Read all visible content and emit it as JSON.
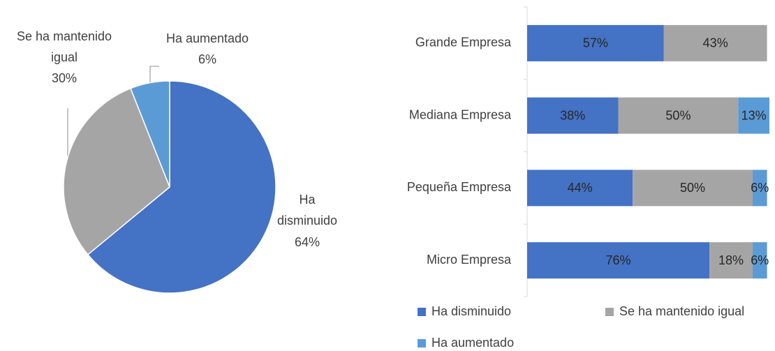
{
  "chart_data": [
    {
      "type": "pie",
      "categories": [
        "Ha disminuido",
        "Se ha mantenido igual",
        "Ha aumentado"
      ],
      "values": [
        64,
        30,
        6
      ],
      "value_labels": [
        "64%",
        "30%",
        "6%"
      ],
      "colors": [
        "#4472c4",
        "#a5a5a5",
        "#5b9bd5"
      ]
    },
    {
      "type": "bar",
      "orientation": "horizontal",
      "stacked": true,
      "categories": [
        "Grande Empresa",
        "Mediana Empresa",
        "Pequeña Empresa",
        "Micro Empresa"
      ],
      "series": [
        {
          "name": "Ha disminuido",
          "color": "#4472c4",
          "values": [
            57,
            38,
            44,
            76
          ],
          "value_labels": [
            "57%",
            "38%",
            "44%",
            "76%"
          ]
        },
        {
          "name": "Se ha mantenido igual",
          "color": "#a5a5a5",
          "values": [
            43,
            50,
            50,
            18
          ],
          "value_labels": [
            "43%",
            "50%",
            "50%",
            "18%"
          ]
        },
        {
          "name": "Ha aumentado",
          "color": "#5b9bd5",
          "values": [
            null,
            13,
            6,
            6
          ],
          "value_labels": [
            null,
            "13%",
            "6%",
            "6%"
          ]
        }
      ],
      "legend": "bottom"
    }
  ]
}
